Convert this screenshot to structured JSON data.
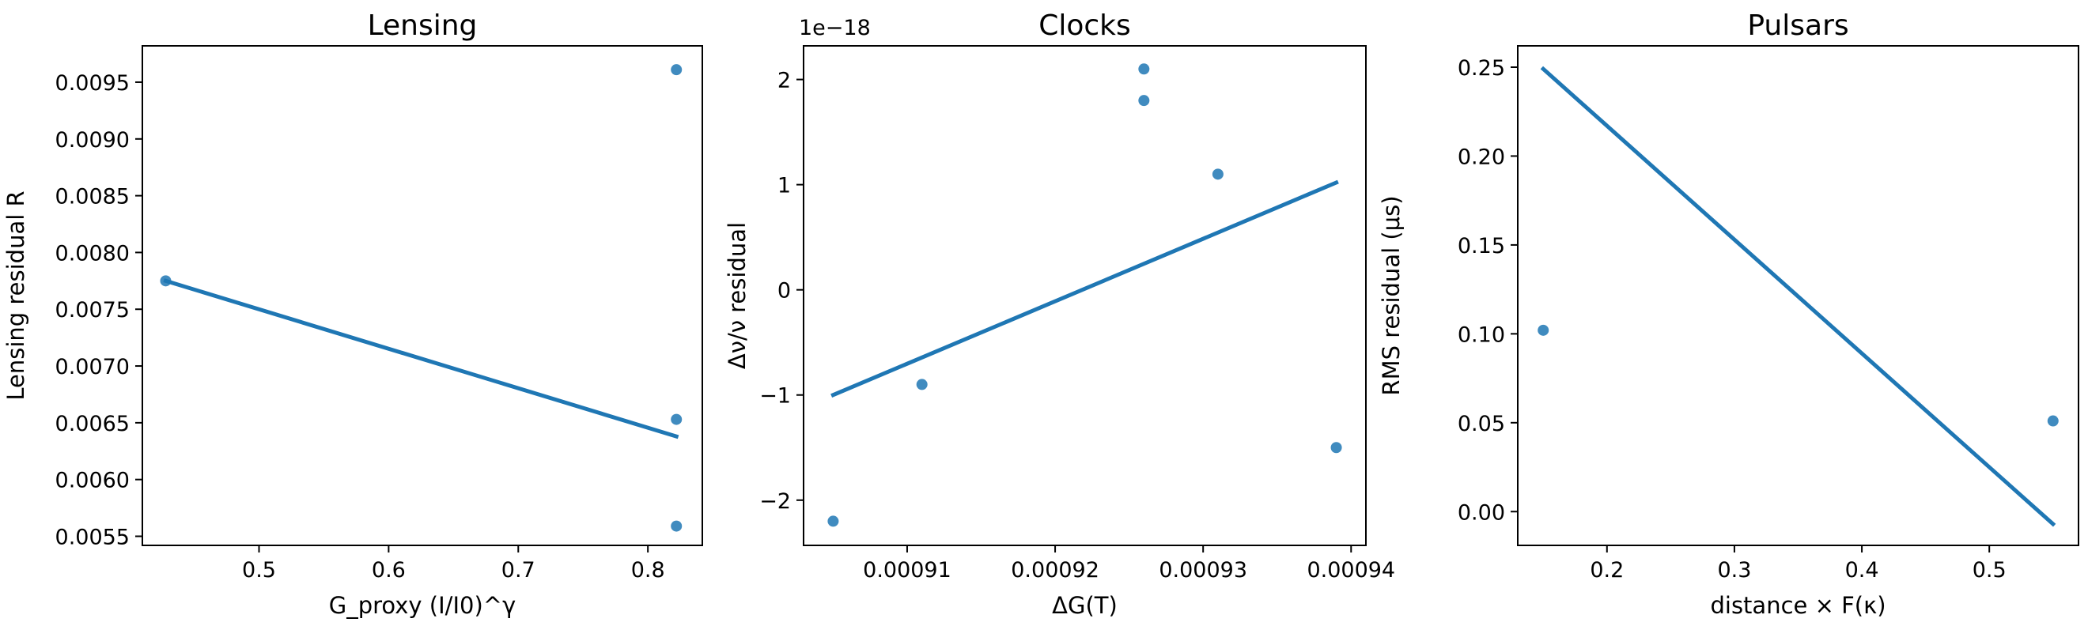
{
  "colors": {
    "series": "#1f77b4",
    "axes": "#000000",
    "background": "#ffffff"
  },
  "chart_data": [
    {
      "type": "scatter",
      "title": "Lensing",
      "xlabel": "G_proxy (I/I0)^γ",
      "ylabel": "Lensing residual R",
      "xlim": [
        0.41,
        0.842
      ],
      "ylim": [
        0.00542,
        0.00982
      ],
      "xticks": [
        0.5,
        0.6,
        0.7,
        0.8
      ],
      "xtick_labels": [
        "0.5",
        "0.6",
        "0.7",
        "0.8"
      ],
      "yticks": [
        0.0055,
        0.006,
        0.0065,
        0.007,
        0.0075,
        0.008,
        0.0085,
        0.009,
        0.0095
      ],
      "ytick_labels": [
        "0.0055",
        "0.0060",
        "0.0065",
        "0.0070",
        "0.0075",
        "0.0080",
        "0.0085",
        "0.0090",
        "0.0095"
      ],
      "points": {
        "x": [
          0.428,
          0.822,
          0.822,
          0.822
        ],
        "y": [
          0.00775,
          0.00961,
          0.00653,
          0.00559
        ]
      },
      "fit_line": {
        "x": [
          0.428,
          0.822
        ],
        "y": [
          0.00775,
          0.00638
        ]
      },
      "grid": false
    },
    {
      "type": "scatter",
      "title": "Clocks",
      "xlabel": "ΔG(T)",
      "ylabel": "Δν/ν residual",
      "y_offset_label": "1e−18",
      "xlim": [
        0.000903,
        0.000941
      ],
      "ylim": [
        -2.43,
        2.32
      ],
      "xticks": [
        0.00091,
        0.00092,
        0.00093,
        0.00094
      ],
      "xtick_labels": [
        "0.00091",
        "0.00092",
        "0.00093",
        "0.00094"
      ],
      "yticks": [
        -2,
        -1,
        0,
        1,
        2
      ],
      "ytick_labels": [
        "−2",
        "−1",
        "0",
        "1",
        "2"
      ],
      "points": {
        "x": [
          0.000905,
          0.000911,
          0.000926,
          0.000926,
          0.000931,
          0.000939
        ],
        "y": [
          -2.2,
          -0.9,
          2.1,
          1.8,
          1.1,
          -1.5
        ]
      },
      "fit_line": {
        "x": [
          0.000905,
          0.000939
        ],
        "y": [
          -1.0,
          1.02
        ]
      },
      "grid": false
    },
    {
      "type": "scatter",
      "title": "Pulsars",
      "xlabel": "distance × F(κ)",
      "ylabel": "RMS residual (μs)",
      "xlim": [
        0.13,
        0.57
      ],
      "ylim": [
        -0.019,
        0.262
      ],
      "xticks": [
        0.2,
        0.3,
        0.4,
        0.5
      ],
      "xtick_labels": [
        "0.2",
        "0.3",
        "0.4",
        "0.5"
      ],
      "yticks": [
        0.0,
        0.05,
        0.1,
        0.15,
        0.2,
        0.25
      ],
      "ytick_labels": [
        "0.00",
        "0.05",
        "0.10",
        "0.15",
        "0.20",
        "0.25"
      ],
      "points": {
        "x": [
          0.15,
          0.55
        ],
        "y": [
          0.102,
          0.051
        ]
      },
      "fit_line": {
        "x": [
          0.15,
          0.55
        ],
        "y": [
          0.249,
          -0.007
        ]
      },
      "grid": false
    }
  ]
}
